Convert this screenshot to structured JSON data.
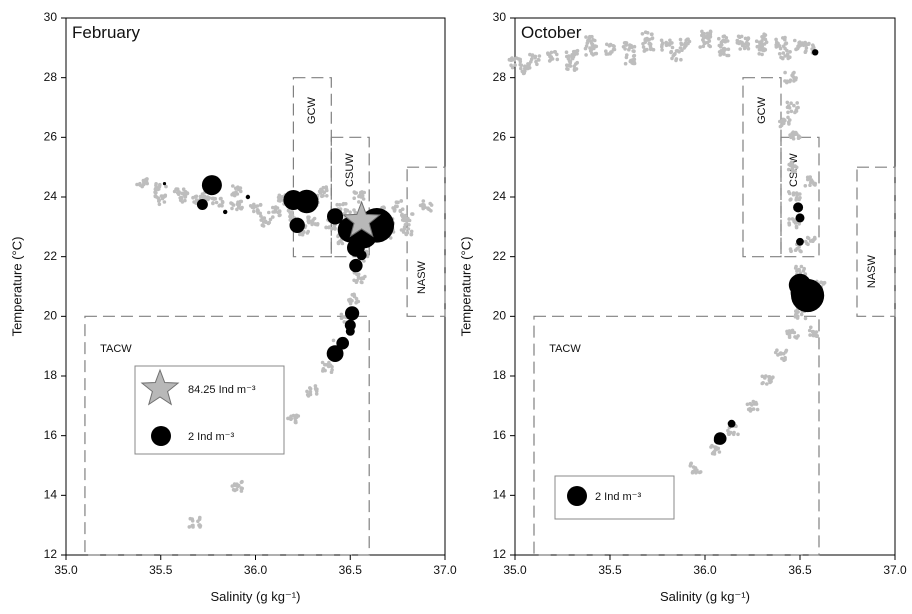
{
  "chart_data": [
    {
      "type": "scatter",
      "title": "February",
      "xlabel": "Salinity (g kg⁻¹)",
      "ylabel": "Temperature (°C)",
      "xlim": [
        35.0,
        37.0
      ],
      "ylim": [
        12,
        30
      ],
      "xticks": [
        "35.0",
        "35.5",
        "36.0",
        "36.5",
        "37.0"
      ],
      "yticks": [
        "12",
        "14",
        "16",
        "18",
        "20",
        "22",
        "24",
        "26",
        "28",
        "30"
      ],
      "water_masses": [
        {
          "name": "GCW",
          "smin": 36.2,
          "smax": 36.4,
          "tmin": 22,
          "tmax": 28,
          "label_x": 36.3,
          "label_y": 26.9,
          "rotate": true
        },
        {
          "name": "CSUW",
          "smin": 36.4,
          "smax": 36.6,
          "tmin": 22,
          "tmax": 26,
          "label_x": 36.5,
          "label_y": 24.9,
          "rotate": true
        },
        {
          "name": "NASW",
          "smin": 36.8,
          "smax": 37.0,
          "tmin": 20,
          "tmax": 25,
          "label_x": 36.88,
          "label_y": 21.3,
          "rotate": true
        },
        {
          "name": "TACW",
          "smin": 35.1,
          "smax": 36.6,
          "tmin": 12,
          "tmax": 20,
          "label_x": 35.18,
          "label_y": 18.9,
          "rotate": false
        }
      ],
      "ts_background": [
        [
          35.68,
          13.1
        ],
        [
          35.9,
          14.3
        ],
        [
          36.1,
          15.6
        ],
        [
          36.2,
          16.6
        ],
        [
          36.3,
          17.5
        ],
        [
          36.38,
          18.3
        ],
        [
          36.44,
          19.1
        ],
        [
          36.48,
          19.9
        ],
        [
          36.52,
          20.6
        ],
        [
          36.55,
          21.3
        ],
        [
          36.57,
          22.0
        ],
        [
          36.6,
          22.8
        ],
        [
          36.7,
          23.1
        ],
        [
          36.8,
          23.3
        ],
        [
          36.9,
          23.7
        ],
        [
          35.4,
          24.5
        ],
        [
          35.5,
          24.3
        ],
        [
          35.6,
          24.1
        ],
        [
          35.7,
          23.9
        ],
        [
          35.8,
          23.8
        ],
        [
          35.9,
          23.7
        ],
        [
          36.0,
          23.6
        ],
        [
          36.1,
          23.5
        ],
        [
          36.2,
          23.4
        ],
        [
          36.3,
          23.2
        ],
        [
          36.4,
          23.1
        ],
        [
          36.5,
          23.0
        ],
        [
          36.6,
          22.9
        ],
        [
          36.7,
          22.8
        ],
        [
          36.8,
          22.9
        ],
        [
          35.75,
          24.0
        ],
        [
          35.9,
          24.2
        ],
        [
          36.05,
          23.2
        ],
        [
          36.15,
          23.9
        ],
        [
          36.25,
          22.9
        ],
        [
          36.35,
          24.2
        ],
        [
          36.45,
          23.6
        ],
        [
          36.55,
          24.0
        ],
        [
          36.65,
          23.5
        ],
        [
          36.75,
          23.7
        ],
        [
          35.5,
          23.9
        ],
        [
          35.62,
          24.0
        ],
        [
          36.3,
          23.8
        ],
        [
          36.45,
          22.6
        ],
        [
          36.5,
          23.4
        ]
      ],
      "stations": [
        {
          "s": 35.77,
          "t": 24.4,
          "ind": 2.0
        },
        {
          "s": 35.72,
          "t": 23.75,
          "ind": 0.6
        },
        {
          "s": 36.2,
          "t": 23.9,
          "ind": 2.0
        },
        {
          "s": 36.27,
          "t": 23.85,
          "ind": 2.8
        },
        {
          "s": 36.22,
          "t": 23.05,
          "ind": 1.2
        },
        {
          "s": 36.42,
          "t": 23.35,
          "ind": 1.3
        },
        {
          "s": 36.5,
          "t": 22.9,
          "ind": 3.2
        },
        {
          "s": 36.57,
          "t": 22.75,
          "ind": 4.0
        },
        {
          "s": 36.64,
          "t": 23.05,
          "ind": 6.0
        },
        {
          "s": 36.53,
          "t": 22.3,
          "ind": 1.6
        },
        {
          "s": 36.53,
          "t": 21.7,
          "ind": 0.9
        },
        {
          "s": 36.56,
          "t": 22.05,
          "ind": 0.5
        },
        {
          "s": 36.51,
          "t": 20.1,
          "ind": 1.0
        },
        {
          "s": 36.5,
          "t": 19.7,
          "ind": 0.6
        },
        {
          "s": 36.5,
          "t": 19.5,
          "ind": 0.4
        },
        {
          "s": 36.46,
          "t": 19.1,
          "ind": 0.8
        },
        {
          "s": 36.42,
          "t": 18.75,
          "ind": 1.4
        },
        {
          "s": 35.96,
          "t": 24.0,
          "ind": 0.1
        },
        {
          "s": 35.84,
          "t": 23.5,
          "ind": 0.1
        },
        {
          "s": 35.52,
          "t": 24.45,
          "ind": 0.05
        }
      ],
      "star": {
        "s": 36.56,
        "t": 23.2,
        "ind": 84.25
      },
      "legend": {
        "position": "lower-left",
        "entries": [
          {
            "marker": "star",
            "label": "84.25 Ind m⁻³"
          },
          {
            "marker": "circle",
            "label": "2 Ind m⁻³"
          }
        ]
      }
    },
    {
      "type": "scatter",
      "title": "October",
      "xlabel": "Salinity (g kg⁻¹)",
      "ylabel": "Temperature (°C)",
      "xlim": [
        35.0,
        37.0
      ],
      "ylim": [
        12,
        30
      ],
      "xticks": [
        "35.0",
        "35.5",
        "36.0",
        "36.5",
        "37.0"
      ],
      "yticks": [
        "12",
        "14",
        "16",
        "18",
        "20",
        "22",
        "24",
        "26",
        "28",
        "30"
      ],
      "water_masses": [
        {
          "name": "GCW",
          "smin": 36.2,
          "smax": 36.4,
          "tmin": 22,
          "tmax": 28,
          "label_x": 36.3,
          "label_y": 26.9,
          "rotate": true
        },
        {
          "name": "CSUW",
          "smin": 36.4,
          "smax": 36.6,
          "tmin": 22,
          "tmax": 26,
          "label_x": 36.47,
          "label_y": 24.9,
          "rotate": true
        },
        {
          "name": "NASW",
          "smin": 36.8,
          "smax": 37.0,
          "tmin": 20,
          "tmax": 25,
          "label_x": 36.88,
          "label_y": 21.5,
          "rotate": true
        },
        {
          "name": "TACW",
          "smin": 35.1,
          "smax": 36.6,
          "tmin": 12,
          "tmax": 20,
          "label_x": 35.18,
          "label_y": 18.9,
          "rotate": false
        }
      ],
      "ts_background": [
        [
          35.95,
          14.9
        ],
        [
          36.05,
          15.5
        ],
        [
          36.15,
          16.2
        ],
        [
          36.25,
          17.0
        ],
        [
          36.33,
          17.9
        ],
        [
          36.4,
          18.7
        ],
        [
          36.46,
          19.4
        ],
        [
          36.5,
          20.1
        ],
        [
          36.52,
          20.8
        ],
        [
          36.5,
          21.5
        ],
        [
          36.48,
          22.3
        ],
        [
          36.47,
          23.1
        ],
        [
          36.47,
          24.0
        ],
        [
          36.47,
          25.0
        ],
        [
          36.47,
          26.0
        ],
        [
          36.46,
          27.0
        ],
        [
          36.45,
          28.0
        ],
        [
          36.42,
          28.8
        ],
        [
          35.0,
          28.5
        ],
        [
          35.1,
          28.6
        ],
        [
          35.2,
          28.7
        ],
        [
          35.3,
          28.8
        ],
        [
          35.4,
          28.9
        ],
        [
          35.5,
          28.95
        ],
        [
          35.6,
          29.0
        ],
        [
          35.7,
          29.05
        ],
        [
          35.8,
          29.1
        ],
        [
          35.9,
          29.15
        ],
        [
          36.0,
          29.2
        ],
        [
          36.1,
          29.25
        ],
        [
          36.2,
          29.3
        ],
        [
          36.3,
          29.3
        ],
        [
          36.4,
          29.2
        ],
        [
          36.5,
          29.1
        ],
        [
          36.55,
          29.0
        ],
        [
          35.05,
          28.3
        ],
        [
          35.3,
          28.4
        ],
        [
          35.6,
          28.6
        ],
        [
          35.85,
          28.75
        ],
        [
          36.1,
          28.9
        ],
        [
          36.3,
          28.95
        ],
        [
          35.4,
          29.2
        ],
        [
          35.7,
          29.4
        ],
        [
          36.0,
          29.45
        ],
        [
          36.2,
          29.1
        ],
        [
          36.55,
          22.5
        ],
        [
          36.55,
          24.5
        ],
        [
          36.42,
          26.5
        ],
        [
          36.6,
          21.0
        ],
        [
          36.58,
          19.5
        ]
      ],
      "stations": [
        {
          "s": 36.58,
          "t": 28.85,
          "ind": 0.2
        },
        {
          "s": 36.49,
          "t": 23.65,
          "ind": 0.5
        },
        {
          "s": 36.5,
          "t": 23.3,
          "ind": 0.4
        },
        {
          "s": 36.5,
          "t": 22.5,
          "ind": 0.3
        },
        {
          "s": 36.5,
          "t": 21.05,
          "ind": 2.5
        },
        {
          "s": 36.52,
          "t": 20.8,
          "ind": 3.5
        },
        {
          "s": 36.54,
          "t": 20.7,
          "ind": 5.5
        },
        {
          "s": 36.08,
          "t": 15.9,
          "ind": 0.8
        },
        {
          "s": 36.14,
          "t": 16.4,
          "ind": 0.3
        },
        {
          "s": 36.07,
          "t": 15.85,
          "ind": 0.4
        }
      ],
      "legend": {
        "position": "lower-left",
        "entries": [
          {
            "marker": "circle",
            "label": "2 Ind m⁻³"
          }
        ]
      }
    }
  ],
  "style": {
    "background_points": "#bdbdbd",
    "station_fill": "#000000",
    "star_fill": "#b8b8b8",
    "box_stroke": "#808080"
  }
}
